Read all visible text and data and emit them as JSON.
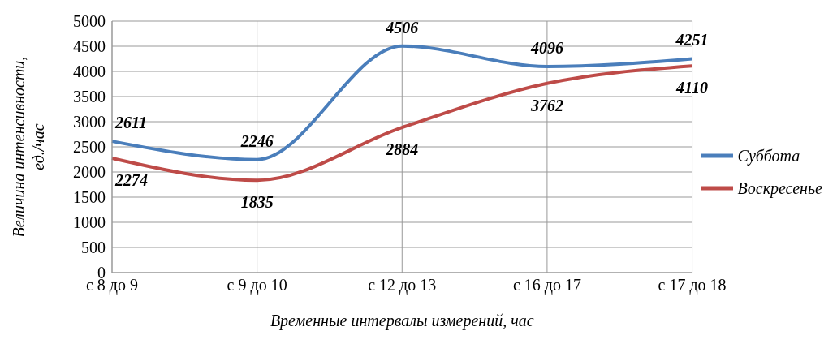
{
  "chart_data": {
    "type": "line",
    "xlabel": "Временные интервалы измерений, час",
    "ylabel": "Величина интенсивности, ед./час",
    "categories": [
      "с 8 до 9",
      "с 9 до 10",
      "с 12 до 13",
      "с 16 до 17",
      "с 17 до 18"
    ],
    "series": [
      {
        "name": "Суббота",
        "color": "#4a7ebb",
        "values": [
          2611,
          2246,
          4506,
          4096,
          4251
        ]
      },
      {
        "name": "Воскресенье",
        "color": "#be4b48",
        "values": [
          2274,
          1835,
          2884,
          3762,
          4110
        ]
      }
    ],
    "ylim": [
      0,
      5000
    ],
    "yticks": [
      0,
      500,
      1000,
      1500,
      2000,
      2500,
      3000,
      3500,
      4000,
      4500,
      5000
    ],
    "grid": true,
    "legend": "right",
    "data_labels": true,
    "marker": "none",
    "line_style": "solid"
  }
}
